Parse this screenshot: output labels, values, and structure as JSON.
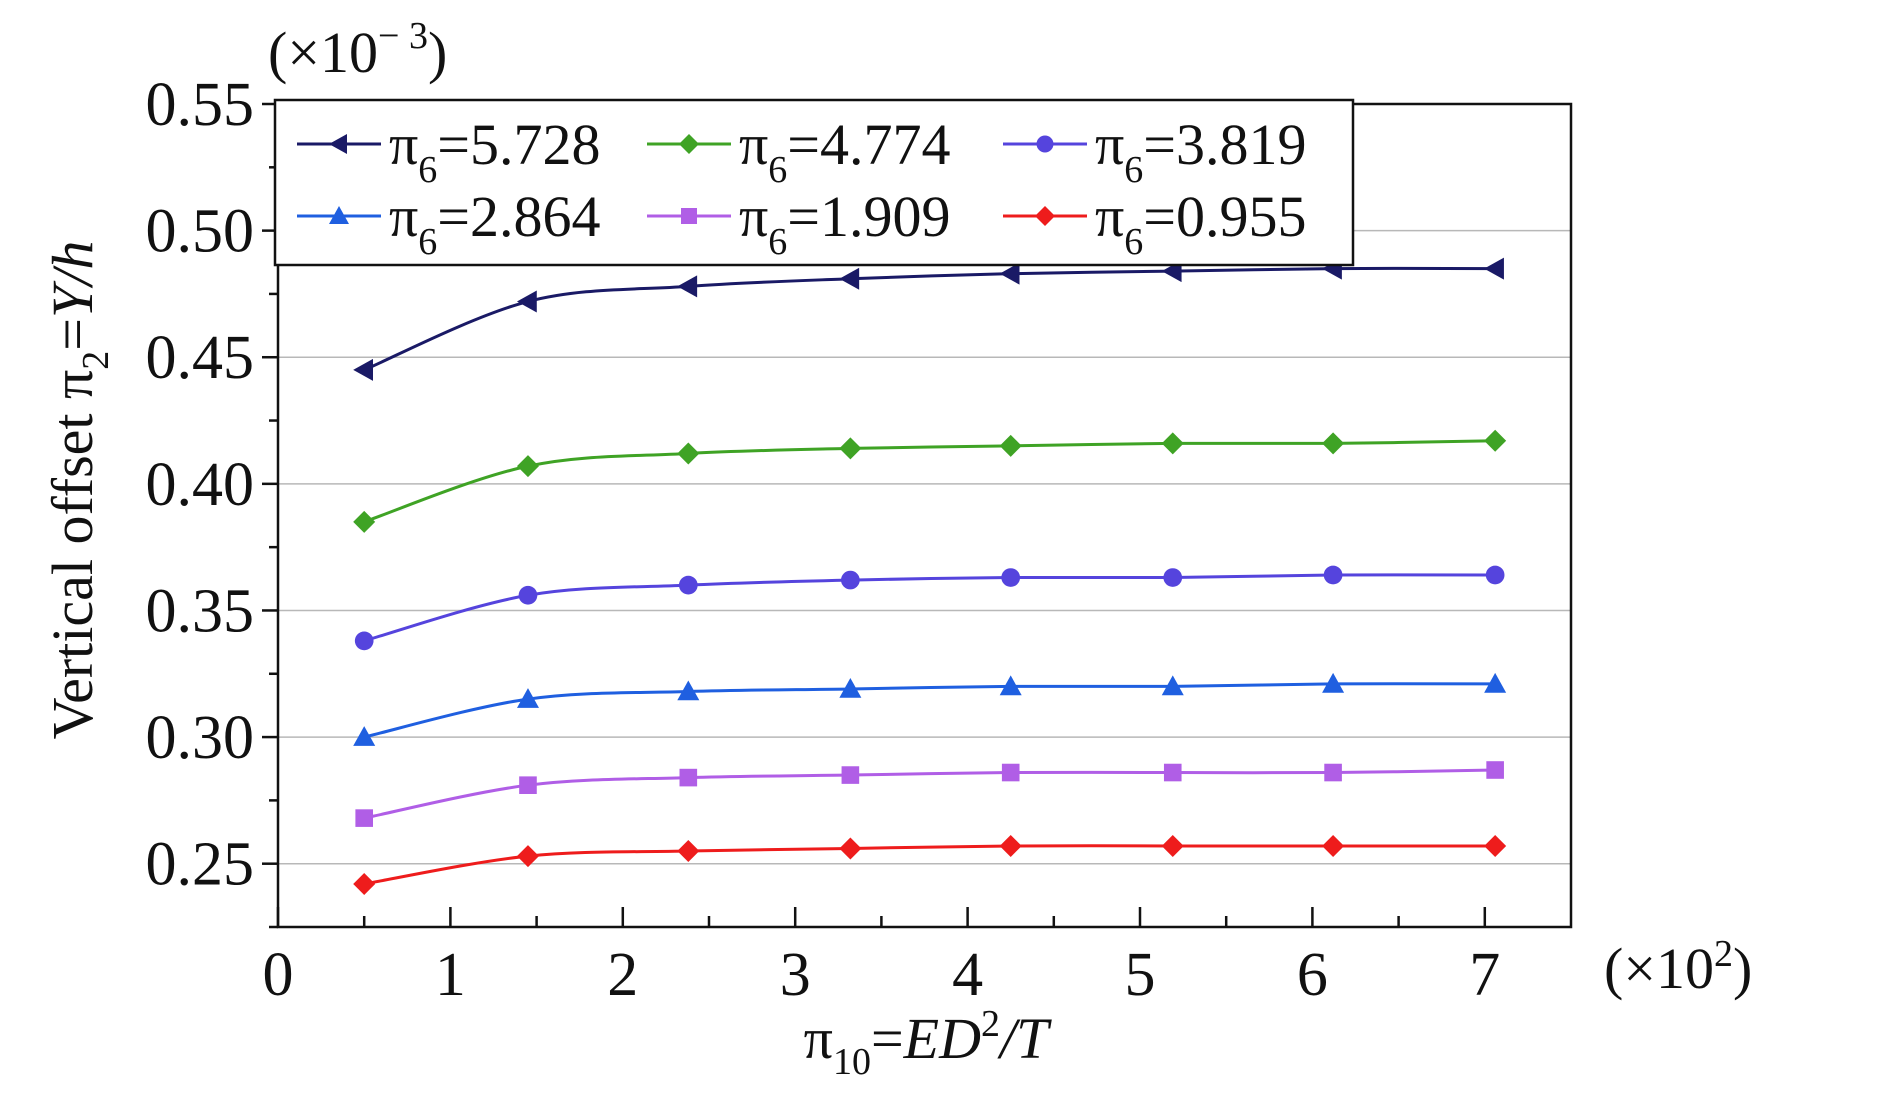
{
  "chart_data": {
    "type": "line",
    "xlabel_parts": [
      "π",
      "10",
      "=",
      "ED",
      "2",
      "/T"
    ],
    "ylabel_parts": [
      "Vertical offset π",
      "2",
      "=",
      "Y/h"
    ],
    "x_multiplier_parts": [
      "(×10",
      "2",
      ")"
    ],
    "y_multiplier_parts": [
      "(×10",
      "− 3",
      ")"
    ],
    "xlim": [
      0,
      7.5
    ],
    "ylim": [
      0.225,
      0.55
    ],
    "xticks": [
      0,
      1,
      2,
      3,
      4,
      5,
      6,
      7
    ],
    "xtick_labels": [
      "0",
      "1",
      "2",
      "3",
      "4",
      "5",
      "6",
      "7"
    ],
    "yticks": [
      0.25,
      0.3,
      0.35,
      0.4,
      0.45,
      0.5,
      0.55
    ],
    "ytick_labels": [
      "0.25",
      "0.30",
      "0.35",
      "0.40",
      "0.45",
      "0.50",
      "0.55"
    ],
    "grid": "horizontal",
    "legend_position": "top-left",
    "x": [
      0.5,
      1.45,
      2.38,
      3.32,
      4.25,
      5.19,
      6.12,
      7.06
    ],
    "series": [
      {
        "name_parts": [
          "π",
          "6",
          "=5.728"
        ],
        "color": "#1a1a66",
        "marker": "triangle-left",
        "values": [
          0.445,
          0.472,
          0.478,
          0.481,
          0.483,
          0.484,
          0.485,
          0.485
        ]
      },
      {
        "name_parts": [
          "π",
          "6",
          "=4.774"
        ],
        "color": "#3fa325",
        "marker": "diamond",
        "values": [
          0.385,
          0.407,
          0.412,
          0.414,
          0.415,
          0.416,
          0.416,
          0.417
        ]
      },
      {
        "name_parts": [
          "π",
          "6",
          "=3.819"
        ],
        "color": "#5544dd",
        "marker": "circle",
        "values": [
          0.338,
          0.356,
          0.36,
          0.362,
          0.363,
          0.363,
          0.364,
          0.364
        ]
      },
      {
        "name_parts": [
          "π",
          "6",
          "=2.864"
        ],
        "color": "#1f5fe0",
        "marker": "triangle-up",
        "values": [
          0.3,
          0.315,
          0.318,
          0.319,
          0.32,
          0.32,
          0.321,
          0.321
        ]
      },
      {
        "name_parts": [
          "π",
          "6",
          "=1.909"
        ],
        "color": "#b05ee6",
        "marker": "square",
        "values": [
          0.268,
          0.281,
          0.284,
          0.285,
          0.286,
          0.286,
          0.286,
          0.287
        ]
      },
      {
        "name_parts": [
          "π",
          "6",
          "=0.955"
        ],
        "color": "#ee1c1c",
        "marker": "diamond",
        "values": [
          0.242,
          0.253,
          0.255,
          0.256,
          0.257,
          0.257,
          0.257,
          0.257
        ]
      }
    ]
  }
}
